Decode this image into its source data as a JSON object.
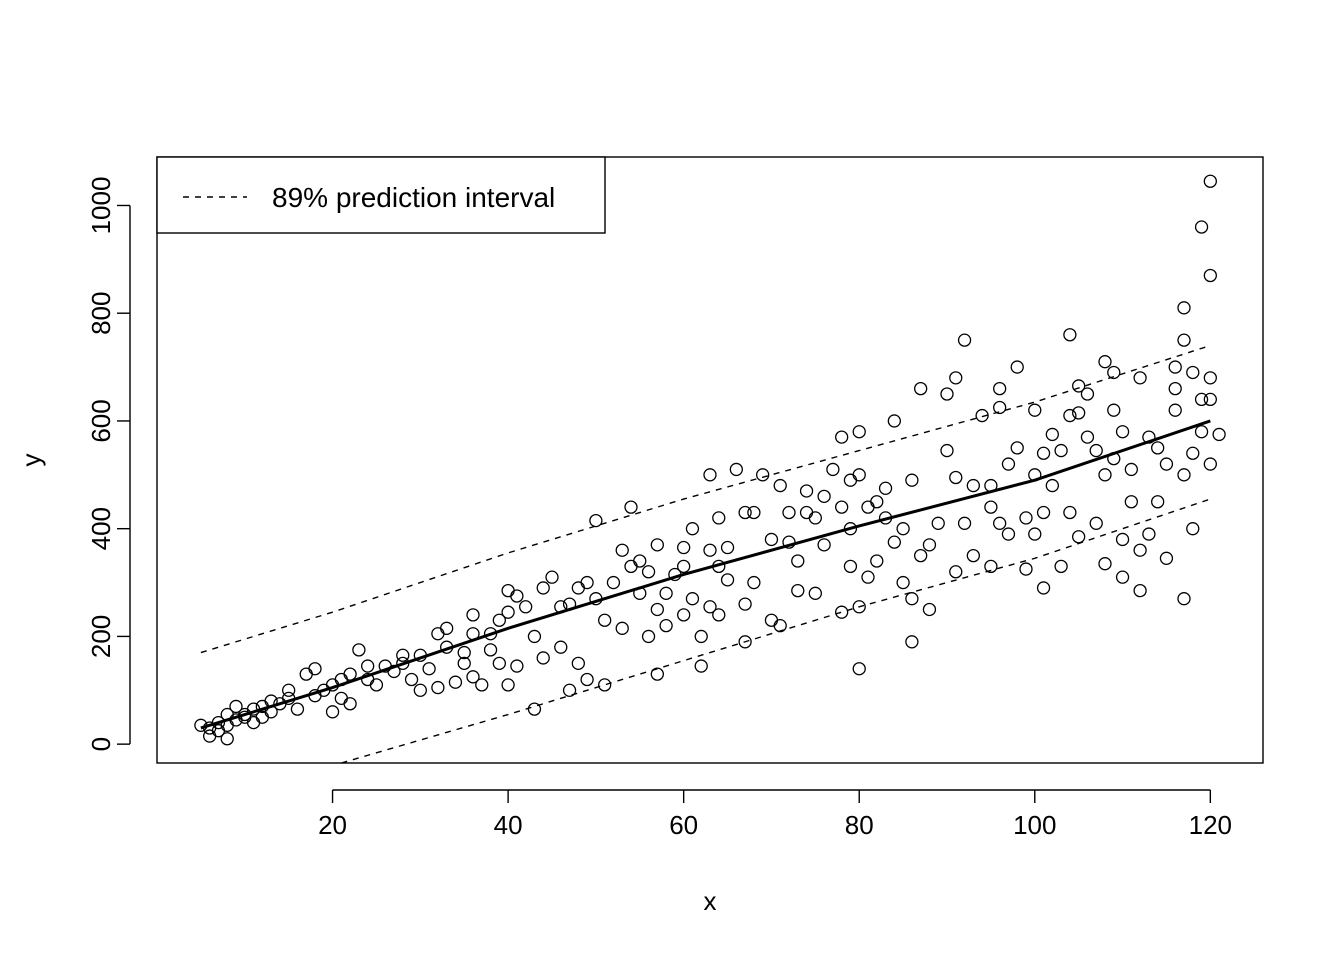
{
  "chart_data": {
    "type": "scatter",
    "title": "",
    "xlabel": "x",
    "ylabel": "y",
    "xlim": [
      0,
      126
    ],
    "ylim": [
      -35,
      1090
    ],
    "x_ticks": [
      20,
      40,
      60,
      80,
      100,
      120
    ],
    "y_ticks": [
      0,
      200,
      400,
      600,
      800,
      1000
    ],
    "grid": false,
    "legend": {
      "position": "top-left",
      "entries": [
        "89% prediction interval"
      ]
    },
    "mean_line": {
      "x": [
        5,
        20,
        40,
        60,
        80,
        100,
        120
      ],
      "y": [
        30,
        105,
        215,
        315,
        405,
        490,
        600
      ]
    },
    "interval_upper": {
      "x": [
        5,
        20,
        40,
        60,
        80,
        100,
        120
      ],
      "y": [
        170,
        245,
        355,
        455,
        545,
        635,
        740
      ]
    },
    "interval_lower": {
      "x": [
        21,
        40,
        60,
        80,
        100,
        120
      ],
      "y": [
        -35,
        55,
        155,
        255,
        345,
        455
      ]
    },
    "points": [
      [
        5,
        35
      ],
      [
        6,
        30
      ],
      [
        6,
        15
      ],
      [
        7,
        40
      ],
      [
        7,
        25
      ],
      [
        8,
        55
      ],
      [
        8,
        35
      ],
      [
        8,
        10
      ],
      [
        9,
        45
      ],
      [
        9,
        70
      ],
      [
        10,
        50
      ],
      [
        10,
        55
      ],
      [
        11,
        40
      ],
      [
        11,
        65
      ],
      [
        12,
        50
      ],
      [
        12,
        70
      ],
      [
        13,
        60
      ],
      [
        13,
        80
      ],
      [
        14,
        75
      ],
      [
        15,
        85
      ],
      [
        15,
        100
      ],
      [
        16,
        65
      ],
      [
        17,
        130
      ],
      [
        18,
        90
      ],
      [
        18,
        140
      ],
      [
        19,
        100
      ],
      [
        20,
        110
      ],
      [
        20,
        60
      ],
      [
        21,
        120
      ],
      [
        21,
        85
      ],
      [
        22,
        130
      ],
      [
        22,
        75
      ],
      [
        23,
        175
      ],
      [
        24,
        120
      ],
      [
        24,
        145
      ],
      [
        25,
        110
      ],
      [
        26,
        145
      ],
      [
        27,
        135
      ],
      [
        28,
        150
      ],
      [
        28,
        165
      ],
      [
        29,
        120
      ],
      [
        30,
        100
      ],
      [
        30,
        165
      ],
      [
        31,
        140
      ],
      [
        32,
        105
      ],
      [
        32,
        205
      ],
      [
        33,
        215
      ],
      [
        33,
        180
      ],
      [
        34,
        115
      ],
      [
        35,
        150
      ],
      [
        35,
        170
      ],
      [
        36,
        240
      ],
      [
        36,
        205
      ],
      [
        36,
        125
      ],
      [
        37,
        110
      ],
      [
        38,
        205
      ],
      [
        38,
        175
      ],
      [
        39,
        230
      ],
      [
        39,
        150
      ],
      [
        40,
        285
      ],
      [
        40,
        245
      ],
      [
        40,
        110
      ],
      [
        41,
        275
      ],
      [
        41,
        145
      ],
      [
        42,
        255
      ],
      [
        43,
        65
      ],
      [
        43,
        200
      ],
      [
        44,
        290
      ],
      [
        44,
        160
      ],
      [
        45,
        310
      ],
      [
        46,
        180
      ],
      [
        46,
        255
      ],
      [
        47,
        100
      ],
      [
        47,
        260
      ],
      [
        48,
        290
      ],
      [
        48,
        150
      ],
      [
        49,
        120
      ],
      [
        49,
        300
      ],
      [
        50,
        415
      ],
      [
        50,
        270
      ],
      [
        51,
        230
      ],
      [
        51,
        110
      ],
      [
        52,
        300
      ],
      [
        53,
        360
      ],
      [
        53,
        215
      ],
      [
        54,
        440
      ],
      [
        54,
        330
      ],
      [
        55,
        280
      ],
      [
        55,
        340
      ],
      [
        56,
        320
      ],
      [
        56,
        200
      ],
      [
        57,
        250
      ],
      [
        57,
        370
      ],
      [
        57,
        130
      ],
      [
        58,
        220
      ],
      [
        58,
        280
      ],
      [
        59,
        315
      ],
      [
        60,
        330
      ],
      [
        60,
        365
      ],
      [
        60,
        240
      ],
      [
        61,
        270
      ],
      [
        61,
        400
      ],
      [
        62,
        200
      ],
      [
        62,
        145
      ],
      [
        63,
        500
      ],
      [
        63,
        360
      ],
      [
        63,
        255
      ],
      [
        64,
        240
      ],
      [
        64,
        330
      ],
      [
        64,
        420
      ],
      [
        65,
        305
      ],
      [
        65,
        365
      ],
      [
        66,
        510
      ],
      [
        67,
        260
      ],
      [
        67,
        430
      ],
      [
        67,
        190
      ],
      [
        68,
        300
      ],
      [
        68,
        430
      ],
      [
        69,
        500
      ],
      [
        70,
        380
      ],
      [
        70,
        230
      ],
      [
        71,
        480
      ],
      [
        71,
        220
      ],
      [
        72,
        430
      ],
      [
        72,
        375
      ],
      [
        73,
        340
      ],
      [
        73,
        285
      ],
      [
        74,
        470
      ],
      [
        74,
        430
      ],
      [
        75,
        420
      ],
      [
        75,
        280
      ],
      [
        76,
        460
      ],
      [
        76,
        370
      ],
      [
        77,
        510
      ],
      [
        78,
        440
      ],
      [
        78,
        570
      ],
      [
        78,
        245
      ],
      [
        79,
        490
      ],
      [
        79,
        330
      ],
      [
        79,
        400
      ],
      [
        80,
        580
      ],
      [
        80,
        500
      ],
      [
        80,
        140
      ],
      [
        80,
        255
      ],
      [
        81,
        440
      ],
      [
        81,
        310
      ],
      [
        82,
        450
      ],
      [
        82,
        340
      ],
      [
        83,
        475
      ],
      [
        83,
        420
      ],
      [
        84,
        375
      ],
      [
        84,
        600
      ],
      [
        85,
        400
      ],
      [
        85,
        300
      ],
      [
        86,
        190
      ],
      [
        86,
        270
      ],
      [
        86,
        490
      ],
      [
        87,
        660
      ],
      [
        87,
        350
      ],
      [
        88,
        250
      ],
      [
        88,
        370
      ],
      [
        89,
        410
      ],
      [
        90,
        545
      ],
      [
        90,
        650
      ],
      [
        91,
        680
      ],
      [
        91,
        320
      ],
      [
        91,
        495
      ],
      [
        92,
        750
      ],
      [
        92,
        410
      ],
      [
        93,
        480
      ],
      [
        93,
        350
      ],
      [
        94,
        610
      ],
      [
        95,
        440
      ],
      [
        95,
        330
      ],
      [
        95,
        480
      ],
      [
        96,
        410
      ],
      [
        96,
        625
      ],
      [
        96,
        660
      ],
      [
        97,
        390
      ],
      [
        97,
        520
      ],
      [
        98,
        700
      ],
      [
        98,
        550
      ],
      [
        99,
        420
      ],
      [
        99,
        325
      ],
      [
        100,
        390
      ],
      [
        100,
        620
      ],
      [
        100,
        500
      ],
      [
        101,
        290
      ],
      [
        101,
        430
      ],
      [
        101,
        540
      ],
      [
        102,
        575
      ],
      [
        102,
        480
      ],
      [
        103,
        330
      ],
      [
        103,
        545
      ],
      [
        104,
        760
      ],
      [
        104,
        430
      ],
      [
        104,
        610
      ],
      [
        105,
        385
      ],
      [
        105,
        615
      ],
      [
        105,
        665
      ],
      [
        106,
        570
      ],
      [
        106,
        650
      ],
      [
        107,
        410
      ],
      [
        107,
        545
      ],
      [
        108,
        500
      ],
      [
        108,
        335
      ],
      [
        108,
        710
      ],
      [
        109,
        620
      ],
      [
        109,
        690
      ],
      [
        109,
        530
      ],
      [
        110,
        310
      ],
      [
        110,
        380
      ],
      [
        110,
        580
      ],
      [
        111,
        450
      ],
      [
        111,
        510
      ],
      [
        112,
        285
      ],
      [
        112,
        360
      ],
      [
        112,
        680
      ],
      [
        113,
        570
      ],
      [
        113,
        390
      ],
      [
        114,
        550
      ],
      [
        114,
        450
      ],
      [
        115,
        345
      ],
      [
        115,
        520
      ],
      [
        116,
        700
      ],
      [
        116,
        660
      ],
      [
        116,
        620
      ],
      [
        117,
        270
      ],
      [
        117,
        500
      ],
      [
        117,
        750
      ],
      [
        117,
        810
      ],
      [
        118,
        540
      ],
      [
        118,
        690
      ],
      [
        118,
        400
      ],
      [
        119,
        960
      ],
      [
        119,
        580
      ],
      [
        119,
        640
      ],
      [
        120,
        680
      ],
      [
        120,
        870
      ],
      [
        120,
        1045
      ],
      [
        120,
        520
      ],
      [
        120,
        640
      ],
      [
        121,
        575
      ]
    ]
  }
}
